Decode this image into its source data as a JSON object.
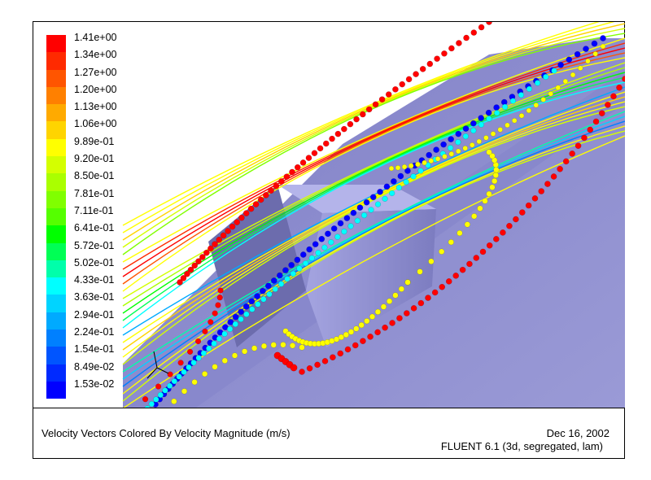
{
  "legend": {
    "labels": [
      "1.41e+00",
      "1.34e+00",
      "1.27e+00",
      "1.20e+00",
      "1.13e+00",
      "1.06e+00",
      "9.89e-01",
      "9.20e-01",
      "8.50e-01",
      "7.81e-01",
      "7.11e-01",
      "6.41e-01",
      "5.72e-01",
      "5.02e-01",
      "4.33e-01",
      "3.63e-01",
      "2.94e-01",
      "2.24e-01",
      "1.54e-01",
      "8.49e-02",
      "1.53e-02"
    ],
    "colors": [
      "#ff0000",
      "#ff2a00",
      "#ff5500",
      "#ff8000",
      "#ffaa00",
      "#ffd400",
      "#ffff00",
      "#d4ff00",
      "#aaff00",
      "#80ff00",
      "#55ff00",
      "#00ff00",
      "#00ff55",
      "#00ffaa",
      "#00ffff",
      "#00d4ff",
      "#00aaff",
      "#0080ff",
      "#0055ff",
      "#002aff",
      "#0000ff"
    ]
  },
  "scene": {
    "background": "#ffffff",
    "floor_color": "#8c8ccc",
    "block_color": "#8e8ed2"
  },
  "footer": {
    "caption": "Velocity Vectors Colored By Velocity Magnitude (m/s)",
    "date": "Dec 16, 2002",
    "solver": "FLUENT 6.1 (3d, segregated, lam)"
  }
}
